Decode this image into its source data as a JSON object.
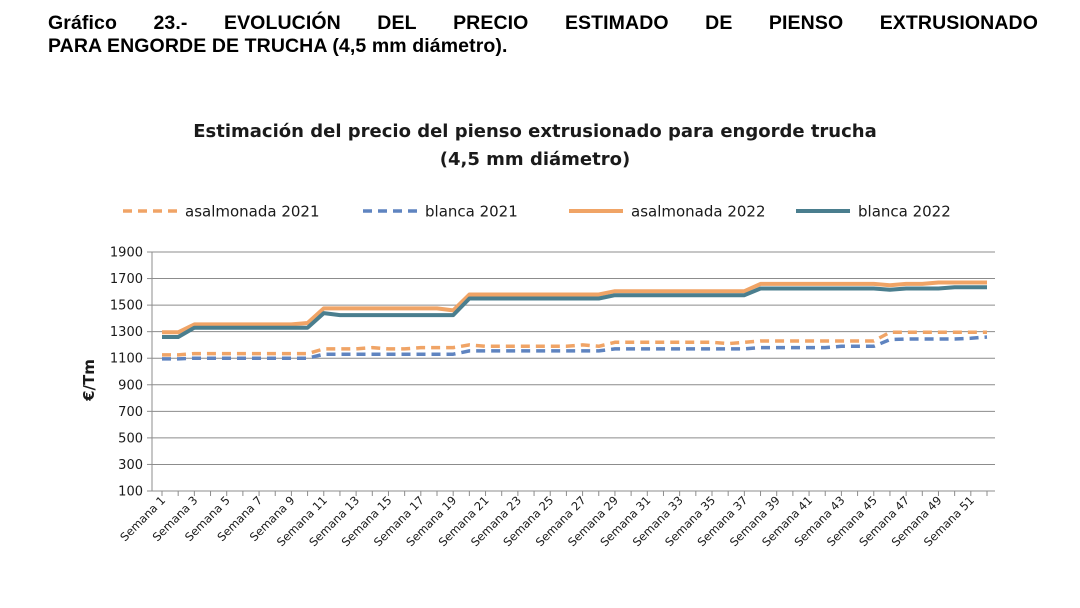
{
  "figure": {
    "caption_line1": [
      "Gráfico",
      "23.-",
      "EVOLUCIÓN",
      "DEL",
      "PRECIO",
      "ESTIMADO",
      "DE",
      "PIENSO",
      "EXTRUSIONADO"
    ],
    "caption_line2": "PARA ENGORDE DE TRUCHA (4,5 mm diámetro)."
  },
  "chart_data": {
    "type": "line",
    "title": [
      "Estimación del precio del pienso extrusionado para engorde trucha",
      "(4,5 mm diámetro)"
    ],
    "ylabel": "€/Tm",
    "xlabel": "",
    "ylim": [
      100,
      1900
    ],
    "yticks": [
      100,
      300,
      500,
      700,
      900,
      1100,
      1300,
      1500,
      1700,
      1900
    ],
    "grid": "horizontal",
    "legend": "top",
    "x": [
      1,
      2,
      3,
      4,
      5,
      6,
      7,
      8,
      9,
      10,
      11,
      12,
      13,
      14,
      15,
      16,
      17,
      18,
      19,
      20,
      21,
      22,
      23,
      24,
      25,
      26,
      27,
      28,
      29,
      30,
      31,
      32,
      33,
      34,
      35,
      36,
      37,
      38,
      39,
      40,
      41,
      42,
      43,
      44,
      45,
      46,
      47,
      48,
      49,
      50,
      51,
      52
    ],
    "xtick_labels": [
      "Semana 1",
      "Semana 3",
      "Semana 5",
      "Semana 7",
      "Semana 9",
      "Semana 11",
      "Semana 13",
      "Semana 15",
      "Semana 17",
      "Semana 19",
      "Semana 21",
      "Semana 23",
      "Semana 25",
      "Semana 27",
      "Semana 29",
      "Semana 31",
      "Semana 33",
      "Semana 35",
      "Semana 37",
      "Semana 39",
      "Semana 41",
      "Semana 43",
      "Semana 45",
      "Semana 47",
      "Semana 49",
      "Semana 51"
    ],
    "xtick_weeks": [
      1,
      3,
      5,
      7,
      9,
      11,
      13,
      15,
      17,
      19,
      21,
      23,
      25,
      27,
      29,
      31,
      33,
      35,
      37,
      39,
      41,
      43,
      45,
      47,
      49,
      51
    ],
    "series": [
      {
        "name": "asalmonada 2021",
        "color": "#F0A466",
        "style": "dashed",
        "values": [
          1125,
          1125,
          1135,
          1135,
          1135,
          1135,
          1135,
          1135,
          1135,
          1135,
          1170,
          1170,
          1170,
          1180,
          1170,
          1170,
          1180,
          1180,
          1180,
          1200,
          1190,
          1190,
          1190,
          1190,
          1190,
          1190,
          1200,
          1190,
          1220,
          1220,
          1220,
          1220,
          1220,
          1220,
          1220,
          1210,
          1220,
          1230,
          1230,
          1230,
          1230,
          1230,
          1230,
          1230,
          1230,
          1295,
          1295,
          1295,
          1295,
          1295,
          1295,
          1295
        ]
      },
      {
        "name": "blanca 2021",
        "color": "#5F84C0",
        "style": "dashed",
        "values": [
          1095,
          1095,
          1100,
          1100,
          1100,
          1100,
          1100,
          1100,
          1100,
          1100,
          1130,
          1130,
          1130,
          1130,
          1130,
          1130,
          1130,
          1130,
          1130,
          1155,
          1155,
          1155,
          1155,
          1155,
          1155,
          1155,
          1155,
          1155,
          1170,
          1170,
          1170,
          1170,
          1170,
          1170,
          1170,
          1170,
          1170,
          1180,
          1180,
          1180,
          1180,
          1180,
          1190,
          1190,
          1190,
          1240,
          1245,
          1245,
          1245,
          1245,
          1250,
          1260
        ]
      },
      {
        "name": "asalmonada 2022",
        "color": "#F0A466",
        "style": "solid",
        "values": [
          1295,
          1295,
          1355,
          1355,
          1355,
          1355,
          1355,
          1355,
          1355,
          1365,
          1475,
          1475,
          1475,
          1475,
          1475,
          1475,
          1475,
          1475,
          1460,
          1580,
          1580,
          1580,
          1580,
          1580,
          1580,
          1580,
          1580,
          1580,
          1605,
          1605,
          1605,
          1605,
          1605,
          1605,
          1605,
          1605,
          1605,
          1660,
          1660,
          1660,
          1660,
          1660,
          1660,
          1660,
          1660,
          1650,
          1660,
          1660,
          1670,
          1670,
          1670,
          1670
        ]
      },
      {
        "name": "blanca 2022",
        "color": "#4A7E8E",
        "style": "solid",
        "values": [
          1260,
          1260,
          1330,
          1330,
          1330,
          1330,
          1330,
          1330,
          1330,
          1330,
          1440,
          1425,
          1425,
          1425,
          1425,
          1425,
          1425,
          1425,
          1425,
          1550,
          1550,
          1550,
          1550,
          1550,
          1550,
          1550,
          1550,
          1550,
          1575,
          1575,
          1575,
          1575,
          1575,
          1575,
          1575,
          1575,
          1575,
          1625,
          1625,
          1625,
          1625,
          1625,
          1625,
          1625,
          1625,
          1615,
          1625,
          1625,
          1625,
          1635,
          1635,
          1635
        ]
      }
    ]
  }
}
